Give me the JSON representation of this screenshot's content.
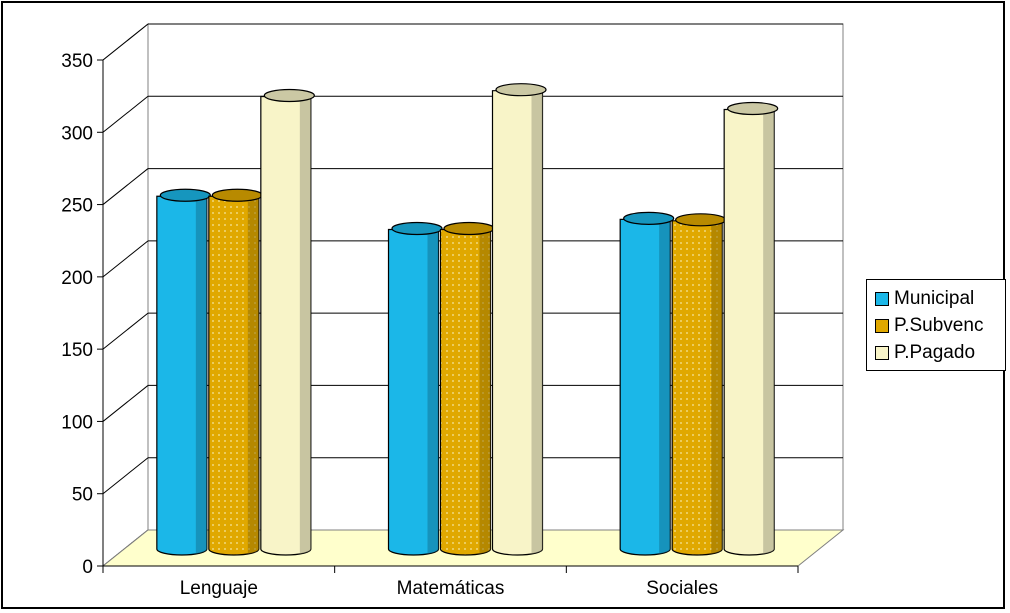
{
  "chart_data": {
    "type": "bar",
    "title": "",
    "xlabel": "",
    "ylabel": "",
    "categories": [
      "Lenguaje",
      "Matemáticas",
      "Sociales"
    ],
    "series": [
      {
        "name": "Municipal",
        "values": [
          244,
          221,
          228
        ],
        "color": "#1BB7E8"
      },
      {
        "name": "P.Subvenc",
        "values": [
          244,
          221,
          227
        ],
        "color": "#E0A800"
      },
      {
        "name": "P.Pagado",
        "values": [
          313,
          317,
          304
        ],
        "color": "#F8F4C8"
      }
    ],
    "ylim": [
      0,
      350
    ],
    "yticks": [
      "0",
      "50",
      "100",
      "150",
      "200",
      "250",
      "300",
      "350"
    ],
    "grid": true,
    "legend_position": "right",
    "bar_shape": "3d-cylinder",
    "floor_color": "#FFFFCC"
  }
}
